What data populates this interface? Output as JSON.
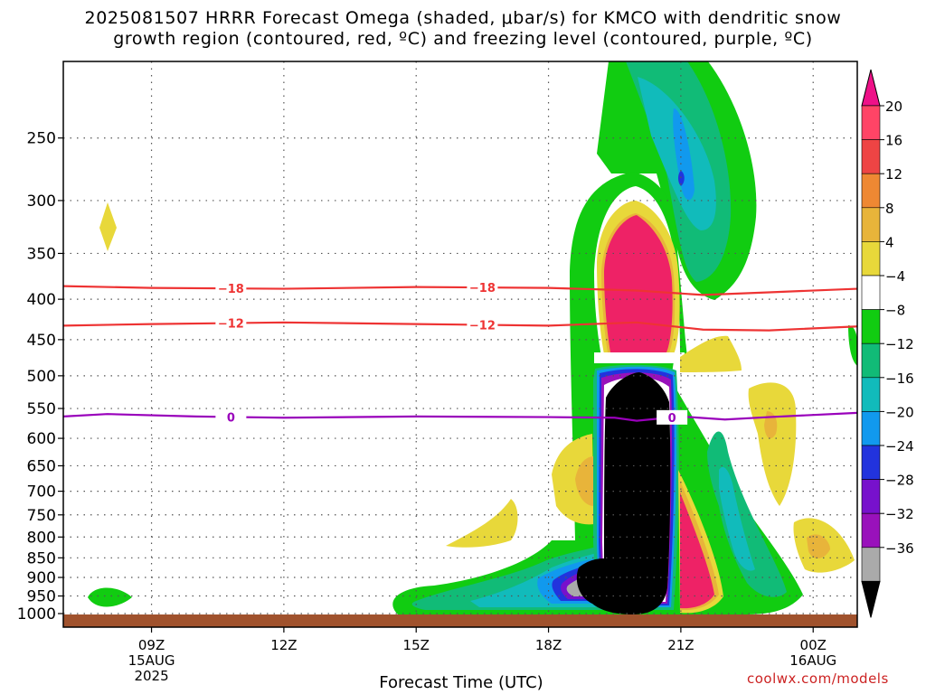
{
  "title_line_1": "2025081507 HRRR Forecast Omega (shaded, μbar/s) for KMCO with dendritic snow",
  "title_line_2": "growth region (contoured, red, ºC) and freezing level (contoured, purple, ºC)",
  "credit": "coolwx.com/models",
  "colors": {
    "dgz_contour": "#ee3333",
    "freezing_contour": "#9900bb",
    "ground": "#a0522d",
    "grid": "#555555"
  },
  "chart_data": {
    "type": "heatmap",
    "xlabel": "Forecast Time (UTC)",
    "x_range_hours": [
      7.0,
      25.0
    ],
    "pressure_range_hPa": [
      200,
      1000
    ],
    "y_ticks": [
      250,
      300,
      350,
      400,
      450,
      500,
      550,
      600,
      650,
      700,
      750,
      800,
      850,
      900,
      950,
      1000
    ],
    "x_ticks": [
      {
        "hour": 9,
        "label": "09Z",
        "date": "15AUG",
        "year": "2025"
      },
      {
        "hour": 12,
        "label": "12Z"
      },
      {
        "hour": 15,
        "label": "15Z"
      },
      {
        "hour": 18,
        "label": "18Z"
      },
      {
        "hour": 21,
        "label": "21Z"
      },
      {
        "hour": 24,
        "label": "00Z",
        "date": "16AUG"
      }
    ],
    "colorbar": {
      "labels": [
        "20",
        "16",
        "12",
        "8",
        "4",
        "−4",
        "−8",
        "−12",
        "−16",
        "−20",
        "−24",
        "−28",
        "−32",
        "−36"
      ],
      "colors": [
        "#ff4466",
        "#ee4444",
        "#ee8833",
        "#e8b43a",
        "#e8d83a",
        "#ffffff",
        "#11cc11",
        "#11bb77",
        "#11bbbb",
        "#1199ee",
        "#2233dd",
        "#7711cc",
        "#9911bb",
        "#aaaaaa"
      ],
      "top_arrow": "#ee1188",
      "bottom_arrow": "#000000"
    },
    "contours": [
      {
        "label": "−18",
        "color": "#ee3333",
        "label_hours": [
          10.8,
          16.5
        ],
        "points": [
          [
            7,
            385
          ],
          [
            9,
            387
          ],
          [
            12,
            388
          ],
          [
            15,
            386
          ],
          [
            18,
            387
          ],
          [
            20,
            390
          ],
          [
            21.5,
            395
          ],
          [
            23,
            392
          ],
          [
            25,
            388
          ]
        ]
      },
      {
        "label": "−12",
        "color": "#ee3333",
        "label_hours": [
          10.8,
          16.5
        ],
        "points": [
          [
            7,
            432
          ],
          [
            9,
            430
          ],
          [
            12,
            428
          ],
          [
            15,
            430
          ],
          [
            18,
            432
          ],
          [
            20,
            428
          ],
          [
            21.5,
            437
          ],
          [
            23,
            438
          ],
          [
            25,
            433
          ]
        ]
      },
      {
        "label": "0",
        "color": "#9900bb",
        "label_hours": [
          10.8,
          20.8
        ],
        "points": [
          [
            7,
            563
          ],
          [
            8,
            559
          ],
          [
            10,
            563
          ],
          [
            12,
            565
          ],
          [
            15,
            563
          ],
          [
            18,
            564
          ],
          [
            19.5,
            565
          ],
          [
            20,
            570
          ],
          [
            21,
            563
          ],
          [
            22,
            568
          ],
          [
            23,
            564
          ],
          [
            25,
            557
          ]
        ]
      }
    ]
  }
}
